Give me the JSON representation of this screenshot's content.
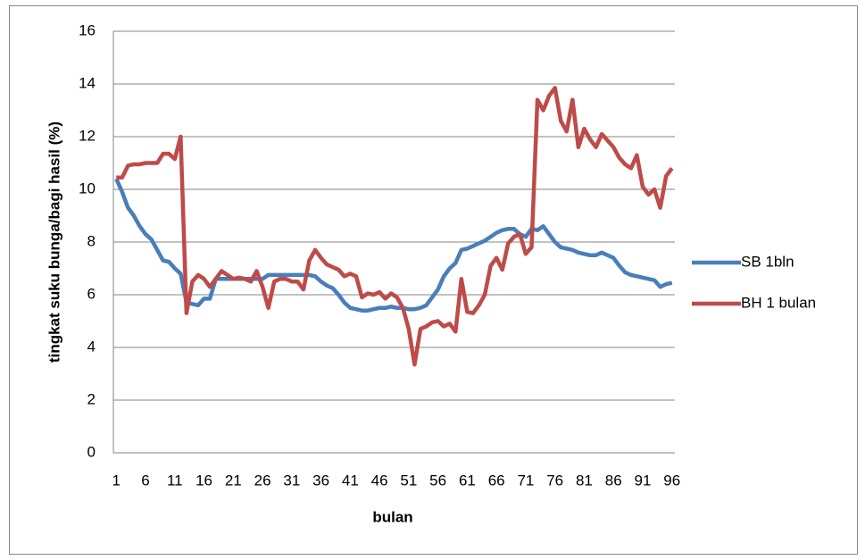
{
  "chart_data": {
    "type": "line",
    "x_label": "bulan",
    "y_label": "tingkat suku bunga/bagi hasil (%)",
    "categories": [
      1,
      null,
      null,
      null,
      null,
      6,
      null,
      null,
      null,
      null,
      11,
      null,
      null,
      null,
      null,
      16,
      null,
      null,
      null,
      null,
      21,
      null,
      null,
      null,
      null,
      26,
      null,
      null,
      null,
      null,
      31,
      null,
      null,
      null,
      null,
      36,
      null,
      null,
      null,
      null,
      41,
      null,
      null,
      null,
      null,
      46,
      null,
      null,
      null,
      null,
      51,
      null,
      null,
      null,
      null,
      56,
      null,
      null,
      null,
      null,
      61,
      null,
      null,
      null,
      null,
      66,
      null,
      null,
      null,
      null,
      71,
      null,
      null,
      null,
      null,
      76,
      null,
      null,
      null,
      null,
      81,
      null,
      null,
      null,
      null,
      86,
      null,
      null,
      null,
      null,
      91,
      null,
      null,
      null,
      null,
      96
    ],
    "series": [
      {
        "name": "SB 1bln",
        "color": "#4a7ebb",
        "values": [
          10.4,
          9.9,
          9.3,
          9.0,
          8.6,
          8.3,
          8.1,
          7.7,
          7.3,
          7.25,
          7.0,
          6.8,
          5.7,
          5.65,
          5.6,
          5.85,
          5.85,
          6.6,
          6.6,
          6.6,
          6.6,
          6.6,
          6.6,
          6.6,
          6.6,
          6.6,
          6.75,
          6.75,
          6.75,
          6.75,
          6.75,
          6.75,
          6.75,
          6.75,
          6.7,
          6.5,
          6.35,
          6.25,
          6.0,
          5.7,
          5.5,
          5.45,
          5.4,
          5.4,
          5.45,
          5.5,
          5.5,
          5.55,
          5.5,
          5.5,
          5.45,
          5.45,
          5.5,
          5.6,
          5.9,
          6.2,
          6.7,
          7.0,
          7.2,
          7.7,
          7.75,
          7.85,
          7.95,
          8.05,
          8.2,
          8.35,
          8.45,
          8.5,
          8.5,
          8.3,
          8.2,
          8.5,
          8.45,
          8.6,
          8.3,
          8.0,
          7.8,
          7.75,
          7.7,
          7.6,
          7.55,
          7.5,
          7.5,
          7.6,
          7.5,
          7.4,
          7.1,
          6.85,
          6.75,
          6.7,
          6.65,
          6.6,
          6.55,
          6.3,
          6.4,
          6.45
        ]
      },
      {
        "name": "BH 1 bulan",
        "color": "#be4b48",
        "values": [
          10.45,
          10.45,
          10.9,
          10.95,
          10.95,
          11.0,
          11.0,
          11.0,
          11.35,
          11.35,
          11.15,
          12.0,
          5.3,
          6.5,
          6.75,
          6.6,
          6.3,
          6.6,
          6.9,
          6.75,
          6.6,
          6.65,
          6.6,
          6.5,
          6.9,
          6.3,
          5.5,
          6.5,
          6.6,
          6.6,
          6.5,
          6.5,
          6.2,
          7.3,
          7.7,
          7.4,
          7.15,
          7.05,
          6.95,
          6.7,
          6.8,
          6.7,
          5.9,
          6.05,
          6.0,
          6.1,
          5.85,
          6.05,
          5.9,
          5.5,
          4.7,
          3.35,
          4.7,
          4.8,
          4.95,
          5.0,
          4.8,
          4.9,
          4.6,
          6.6,
          5.35,
          5.3,
          5.6,
          6.0,
          7.1,
          7.4,
          6.95,
          7.95,
          8.2,
          8.3,
          7.55,
          7.8,
          13.4,
          13.0,
          13.55,
          13.85,
          12.6,
          12.2,
          13.4,
          11.6,
          12.3,
          11.9,
          11.6,
          12.1,
          11.85,
          11.6,
          11.2,
          10.95,
          10.8,
          11.3,
          10.1,
          9.8,
          10.0,
          9.3,
          10.5,
          10.8
        ]
      }
    ],
    "ylim": [
      0,
      16
    ],
    "yticks": [
      0,
      2,
      4,
      6,
      8,
      10,
      12,
      14,
      16
    ],
    "grid": true,
    "legend": "right"
  }
}
